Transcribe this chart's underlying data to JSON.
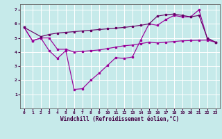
{
  "title": "",
  "xlabel": "Windchill (Refroidissement éolien,°C)",
  "bg_color": "#c6eaea",
  "grid_color": "#ffffff",
  "line_color": "#990099",
  "line_color2": "#660066",
  "xlim": [
    -0.5,
    23.5
  ],
  "ylim": [
    0,
    7.4
  ],
  "xticks": [
    0,
    1,
    2,
    3,
    4,
    5,
    6,
    7,
    8,
    9,
    10,
    11,
    12,
    13,
    14,
    15,
    16,
    17,
    18,
    19,
    20,
    21,
    22,
    23
  ],
  "yticks": [
    1,
    2,
    3,
    4,
    5,
    6,
    7
  ],
  "line1_x": [
    0,
    1,
    2,
    3,
    4,
    5,
    6,
    7,
    8,
    9,
    10,
    11,
    12,
    13,
    14,
    15,
    16,
    17,
    18,
    19,
    20,
    21,
    22,
    23
  ],
  "line1_y": [
    5.75,
    4.8,
    5.0,
    5.0,
    4.2,
    4.2,
    4.0,
    4.05,
    4.1,
    4.15,
    4.25,
    4.35,
    4.45,
    4.5,
    4.6,
    4.7,
    4.65,
    4.7,
    4.75,
    4.8,
    4.82,
    4.84,
    4.85,
    4.7
  ],
  "line2_x": [
    0,
    1,
    2,
    3,
    4,
    5,
    6,
    7,
    8,
    9,
    10,
    11,
    12,
    13,
    14,
    15,
    16,
    17,
    18,
    19,
    20,
    21,
    22,
    23
  ],
  "line2_y": [
    5.75,
    4.8,
    5.0,
    4.1,
    3.55,
    4.1,
    1.35,
    1.4,
    2.0,
    2.5,
    3.05,
    3.6,
    3.55,
    3.65,
    4.85,
    6.0,
    5.9,
    6.3,
    6.6,
    6.5,
    6.5,
    7.0,
    4.95,
    4.7
  ],
  "line3_x": [
    0,
    2,
    3,
    4,
    5,
    6,
    7,
    8,
    9,
    10,
    11,
    12,
    13,
    14,
    15,
    16,
    17,
    18,
    19,
    20,
    21,
    22,
    23
  ],
  "line3_y": [
    5.75,
    5.1,
    5.25,
    5.35,
    5.4,
    5.45,
    5.5,
    5.55,
    5.6,
    5.65,
    5.7,
    5.75,
    5.82,
    5.9,
    6.0,
    6.55,
    6.65,
    6.7,
    6.6,
    6.5,
    6.6,
    5.0,
    4.7
  ]
}
